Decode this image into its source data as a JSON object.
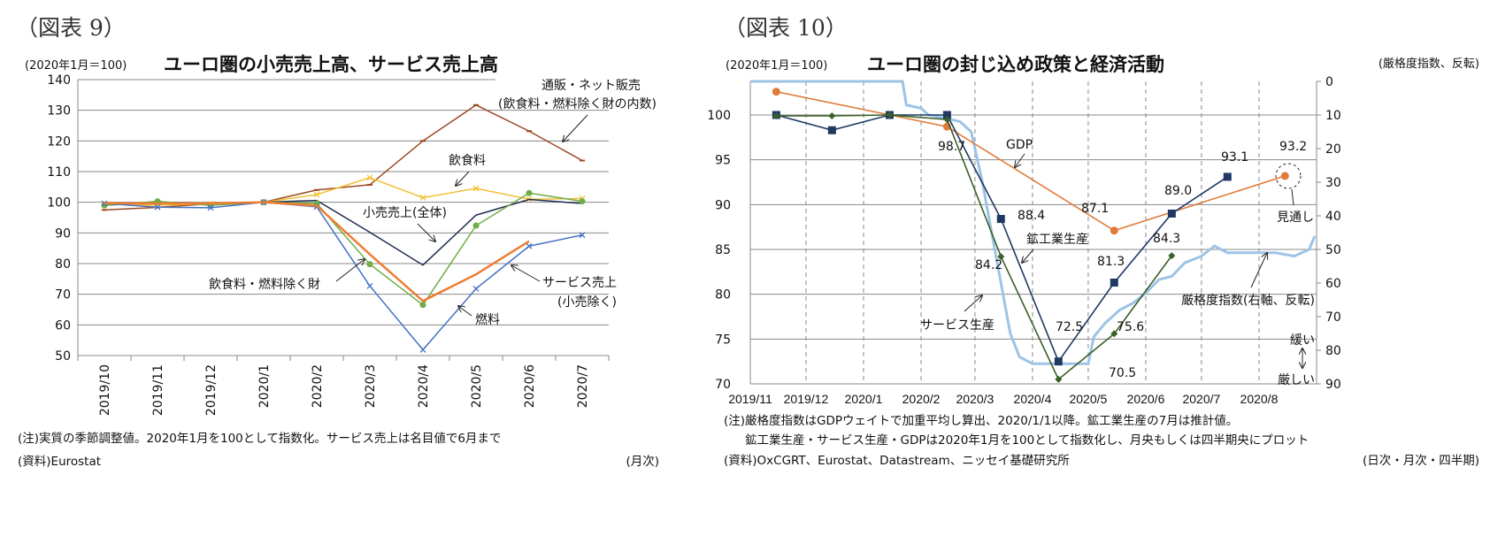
{
  "figure9": {
    "label": "（図表 9）",
    "unit": "(2020年1月＝100)",
    "notes": [
      "(注)実質の季節調整値。2020年1月を100として指数化。サービス売上は名目値で6月まで",
      "(資料)Eurostat"
    ],
    "frequency": "(月次)"
  },
  "figure10": {
    "label": "（図表 10）",
    "unit": "(2020年1月＝100)",
    "right_unit": "(厳格度指数、反転)",
    "notes": [
      "(注)厳格度指数はGDPウェイトで加重平均し算出、2020/1/1以降。鉱工業生産の7月は推計値。",
      "鉱工業生産・サービス生産・GDPは2020年1月を100として指数化し、月央もしくは四半期央にプロット",
      "(資料)OxCGRT、Eurostat、Datastream、ニッセイ基礎研究所"
    ],
    "frequency": "(日次・月次・四半期)"
  },
  "chart_data": [
    {
      "type": "line",
      "title": "ユーロ圏の小売売上高、サービス売上高",
      "categories": [
        "2019/10",
        "2019/11",
        "2019/12",
        "2020/1",
        "2020/2",
        "2020/3",
        "2020/4",
        "2020/5",
        "2020/6",
        "2020/7"
      ],
      "ylim": [
        50,
        140
      ],
      "yticks": [
        "50",
        "60",
        "70",
        "80",
        "90",
        "100",
        "110",
        "120",
        "130",
        "140"
      ],
      "grid": true,
      "series": [
        {
          "name": "通販・ネット販売(飲食料・燃料除く財の内数)",
          "color": "#9a4a1e",
          "marker": "dash",
          "values": [
            97.5,
            98.3,
            99.5,
            100,
            104,
            105.7,
            120,
            131.7,
            123.2,
            113.6
          ]
        },
        {
          "name": "飲食料",
          "color": "#f2c037",
          "marker": "x",
          "values": [
            99.5,
            99,
            99.5,
            100,
            102.5,
            108,
            101.5,
            104.5,
            101,
            101.2
          ]
        },
        {
          "name": "小売売上(全体)",
          "color": "#1f2d4f",
          "marker": "none",
          "values": [
            99,
            100.1,
            99.5,
            100,
            100.6,
            90.2,
            79.5,
            95.8,
            100.9,
            99.6
          ]
        },
        {
          "name": "飲食料・燃料除く財",
          "color": "#70ad47",
          "marker": "dot",
          "values": [
            99,
            100.3,
            99,
            100,
            99.6,
            79.8,
            66.5,
            92.4,
            103,
            100.3
          ]
        },
        {
          "name": "燃料",
          "color": "#4472c4",
          "marker": "x",
          "values": [
            99.6,
            98.4,
            98.2,
            100,
            98.5,
            72.7,
            51.9,
            71.8,
            85.7,
            89.3
          ]
        },
        {
          "name": "サービス売上(小売除く)",
          "color": "#ed7d31",
          "marker": "none",
          "values": [
            99.7,
            99.6,
            99.6,
            100,
            98.9,
            83,
            67.8,
            76.5,
            87.3,
            null
          ]
        }
      ],
      "annotations": [
        "通販・ネット販売",
        "(飲食料・燃料除く財の内数)",
        "飲食料",
        "小売売上(全体)",
        "飲食料・燃料除く財",
        "サービス売上",
        "(小売除く)",
        "燃料"
      ]
    },
    {
      "type": "line",
      "title": "ユーロ圏の封じ込め政策と経済活動",
      "x_range": [
        "2019-11-01",
        "2020-08-31"
      ],
      "xticks": [
        "2019/11",
        "2019/12",
        "2020/1",
        "2020/2",
        "2020/3",
        "2020/4",
        "2020/5",
        "2020/6",
        "2020/7",
        "2020/8"
      ],
      "ylim_left": [
        70,
        103.75
      ],
      "yticks_left": [
        "70",
        "75",
        "80",
        "85",
        "90",
        "95",
        "100"
      ],
      "ylim_right": [
        0,
        90
      ],
      "right_inverted": true,
      "yticks_right": [
        "0",
        "10",
        "20",
        "30",
        "40",
        "50",
        "60",
        "70",
        "80",
        "90"
      ],
      "grid": true,
      "series": [
        {
          "name": "鉱工業生産",
          "color": "#1f3864",
          "marker": "square",
          "x": [
            "2019-11-15",
            "2019-12-15",
            "2020-01-15",
            "2020-02-15",
            "2020-03-15",
            "2020-04-15",
            "2020-05-15",
            "2020-06-15",
            "2020-07-15"
          ],
          "values": [
            100,
            98.3,
            100,
            100,
            88.4,
            72.5,
            81.3,
            89.0,
            93.1
          ]
        },
        {
          "name": "サービス生産",
          "color": "#3a5f27",
          "marker": "diamond",
          "x": [
            "2019-11-15",
            "2019-12-15",
            "2020-01-15",
            "2020-02-15",
            "2020-03-15",
            "2020-04-15",
            "2020-05-15",
            "2020-06-15"
          ],
          "values": [
            99.9,
            99.9,
            100,
            99.5,
            84.2,
            70.5,
            75.6,
            84.3
          ]
        },
        {
          "name": "GDP",
          "color": "#e07b39",
          "marker": "circle",
          "x": [
            "2019-11-15",
            "2020-02-15",
            "2020-05-15",
            "2020-08-15"
          ],
          "values": [
            102.6,
            98.7,
            87.1,
            93.2
          ]
        },
        {
          "name": "厳格度指数(右軸、反転)",
          "color": "#9dc3e6",
          "axis": "right",
          "step": true,
          "x": [
            "2019-11-01",
            "2020-01-22",
            "2020-01-24",
            "2020-02-01",
            "2020-02-05",
            "2020-02-15",
            "2020-02-22",
            "2020-02-28",
            "2020-03-05",
            "2020-03-10",
            "2020-03-15",
            "2020-03-20",
            "2020-03-25",
            "2020-04-01",
            "2020-05-01",
            "2020-05-04",
            "2020-05-10",
            "2020-05-18",
            "2020-05-25",
            "2020-06-01",
            "2020-06-08",
            "2020-06-15",
            "2020-06-22",
            "2020-07-01",
            "2020-07-08",
            "2020-07-15",
            "2020-07-25",
            "2020-08-10",
            "2020-08-20",
            "2020-08-28",
            "2020-08-31"
          ],
          "values": [
            0,
            0,
            7,
            8,
            10,
            11,
            12,
            15,
            30,
            45,
            60,
            75,
            82,
            84,
            84,
            76,
            72,
            68,
            66,
            63,
            59,
            58,
            54,
            52,
            49,
            51,
            51,
            51,
            52,
            50,
            46
          ]
        }
      ],
      "data_labels": [
        "98.7",
        "88.4",
        "84.2",
        "72.5",
        "70.5",
        "87.1",
        "81.3",
        "75.6",
        "89.0",
        "84.3",
        "93.1",
        "93.2"
      ],
      "annotations": [
        "GDP",
        "見通し",
        "鉱工業生産",
        "サービス生産",
        "厳格度指数(右軸、反転)",
        "緩い",
        "厳しい"
      ]
    }
  ]
}
